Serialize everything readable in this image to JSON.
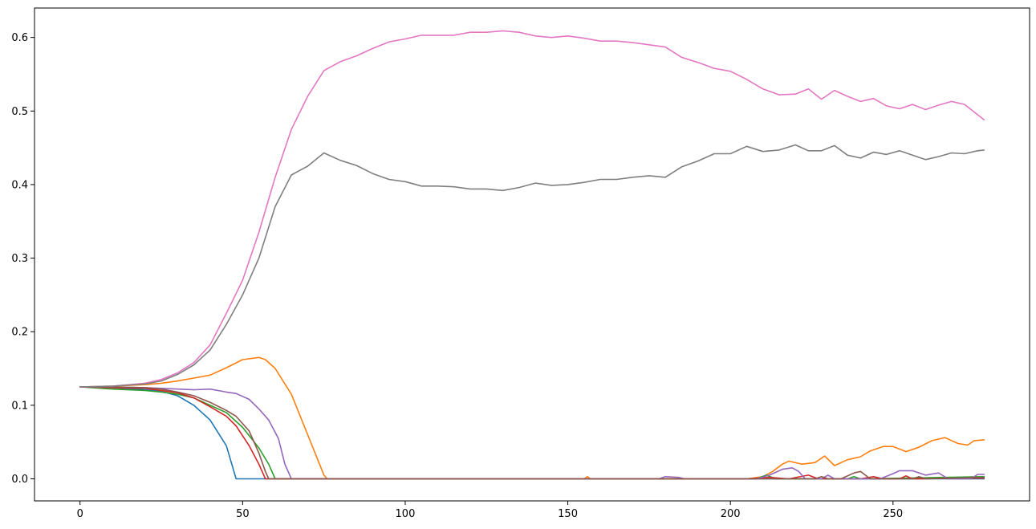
{
  "chart_data": {
    "type": "line",
    "title": "",
    "xlabel": "",
    "ylabel": "",
    "xlim": [
      -14,
      292
    ],
    "ylim": [
      -0.03,
      0.64
    ],
    "xticks": [
      0,
      50,
      100,
      150,
      200,
      250
    ],
    "xtick_labels": [
      "0",
      "50",
      "100",
      "150",
      "200",
      "250"
    ],
    "yticks": [
      0.0,
      0.1,
      0.2,
      0.3,
      0.4,
      0.5,
      0.6
    ],
    "ytick_labels": [
      "0.0",
      "0.1",
      "0.2",
      "0.3",
      "0.4",
      "0.5",
      "0.6"
    ],
    "grid": false,
    "series": [
      {
        "color": "#1f77b4",
        "points": [
          [
            0,
            0.125
          ],
          [
            10,
            0.124
          ],
          [
            20,
            0.121
          ],
          [
            25,
            0.119
          ],
          [
            30,
            0.113
          ],
          [
            35,
            0.1
          ],
          [
            40,
            0.08
          ],
          [
            45,
            0.045
          ],
          [
            48,
            0.0
          ],
          [
            278,
            0.0
          ]
        ]
      },
      {
        "color": "#ff7f0e",
        "points": [
          [
            0,
            0.125
          ],
          [
            10,
            0.126
          ],
          [
            20,
            0.128
          ],
          [
            25,
            0.13
          ],
          [
            30,
            0.133
          ],
          [
            35,
            0.137
          ],
          [
            40,
            0.141
          ],
          [
            45,
            0.151
          ],
          [
            50,
            0.162
          ],
          [
            55,
            0.165
          ],
          [
            57,
            0.162
          ],
          [
            60,
            0.15
          ],
          [
            65,
            0.115
          ],
          [
            70,
            0.06
          ],
          [
            75,
            0.005
          ],
          [
            76,
            0.0
          ],
          [
            155,
            0.0
          ],
          [
            156,
            0.003
          ],
          [
            157,
            0.0
          ],
          [
            205,
            0.0
          ],
          [
            210,
            0.003
          ],
          [
            213,
            0.01
          ],
          [
            216,
            0.02
          ],
          [
            218,
            0.024
          ],
          [
            222,
            0.02
          ],
          [
            226,
            0.022
          ],
          [
            229,
            0.031
          ],
          [
            232,
            0.018
          ],
          [
            236,
            0.026
          ],
          [
            240,
            0.03
          ],
          [
            243,
            0.038
          ],
          [
            247,
            0.044
          ],
          [
            250,
            0.044
          ],
          [
            254,
            0.037
          ],
          [
            258,
            0.043
          ],
          [
            262,
            0.052
          ],
          [
            266,
            0.056
          ],
          [
            270,
            0.048
          ],
          [
            273,
            0.046
          ],
          [
            275,
            0.052
          ],
          [
            278,
            0.053
          ]
        ]
      },
      {
        "color": "#2ca02c",
        "points": [
          [
            0,
            0.125
          ],
          [
            10,
            0.122
          ],
          [
            20,
            0.12
          ],
          [
            25,
            0.118
          ],
          [
            30,
            0.115
          ],
          [
            35,
            0.11
          ],
          [
            40,
            0.1
          ],
          [
            45,
            0.09
          ],
          [
            50,
            0.07
          ],
          [
            55,
            0.042
          ],
          [
            58,
            0.02
          ],
          [
            60,
            0.0
          ],
          [
            208,
            0.0
          ],
          [
            211,
            0.005
          ],
          [
            214,
            0.0
          ],
          [
            236,
            0.0
          ],
          [
            238,
            0.003
          ],
          [
            240,
            0.0
          ],
          [
            278,
            0.003
          ]
        ]
      },
      {
        "color": "#d62728",
        "points": [
          [
            0,
            0.125
          ],
          [
            10,
            0.124
          ],
          [
            20,
            0.123
          ],
          [
            25,
            0.12
          ],
          [
            30,
            0.117
          ],
          [
            35,
            0.11
          ],
          [
            40,
            0.098
          ],
          [
            45,
            0.085
          ],
          [
            48,
            0.072
          ],
          [
            52,
            0.045
          ],
          [
            55,
            0.02
          ],
          [
            57,
            0.0
          ],
          [
            205,
            0.0
          ],
          [
            212,
            0.002
          ],
          [
            218,
            0.0
          ],
          [
            224,
            0.005
          ],
          [
            227,
            0.0
          ],
          [
            240,
            0.0
          ],
          [
            244,
            0.003
          ],
          [
            247,
            0.0
          ],
          [
            252,
            0.0
          ],
          [
            254,
            0.004
          ],
          [
            256,
            0.0
          ],
          [
            278,
            0.001
          ]
        ]
      },
      {
        "color": "#9467bd",
        "points": [
          [
            0,
            0.125
          ],
          [
            10,
            0.125
          ],
          [
            20,
            0.124
          ],
          [
            25,
            0.123
          ],
          [
            30,
            0.122
          ],
          [
            35,
            0.121
          ],
          [
            40,
            0.122
          ],
          [
            45,
            0.118
          ],
          [
            48,
            0.116
          ],
          [
            52,
            0.108
          ],
          [
            55,
            0.095
          ],
          [
            58,
            0.08
          ],
          [
            61,
            0.055
          ],
          [
            63,
            0.02
          ],
          [
            65,
            0.0
          ],
          [
            178,
            0.0
          ],
          [
            180,
            0.003
          ],
          [
            184,
            0.002
          ],
          [
            186,
            0.0
          ],
          [
            208,
            0.0
          ],
          [
            212,
            0.005
          ],
          [
            216,
            0.013
          ],
          [
            219,
            0.015
          ],
          [
            221,
            0.01
          ],
          [
            223,
            0.0
          ],
          [
            228,
            0.0
          ],
          [
            230,
            0.005
          ],
          [
            232,
            0.0
          ],
          [
            246,
            0.0
          ],
          [
            250,
            0.007
          ],
          [
            252,
            0.011
          ],
          [
            256,
            0.011
          ],
          [
            260,
            0.005
          ],
          [
            264,
            0.008
          ],
          [
            267,
            0.0
          ],
          [
            274,
            0.0
          ],
          [
            276,
            0.006
          ],
          [
            278,
            0.006
          ]
        ]
      },
      {
        "color": "#8c564b",
        "points": [
          [
            0,
            0.125
          ],
          [
            10,
            0.125
          ],
          [
            20,
            0.124
          ],
          [
            25,
            0.122
          ],
          [
            30,
            0.118
          ],
          [
            35,
            0.113
          ],
          [
            40,
            0.104
          ],
          [
            45,
            0.093
          ],
          [
            48,
            0.085
          ],
          [
            52,
            0.065
          ],
          [
            55,
            0.035
          ],
          [
            57,
            0.01
          ],
          [
            58,
            0.0
          ],
          [
            226,
            0.0
          ],
          [
            228,
            0.003
          ],
          [
            230,
            0.0
          ],
          [
            234,
            0.0
          ],
          [
            238,
            0.008
          ],
          [
            240,
            0.01
          ],
          [
            243,
            0.0
          ],
          [
            256,
            0.0
          ],
          [
            258,
            0.003
          ],
          [
            260,
            0.0
          ],
          [
            278,
            0.002
          ]
        ]
      },
      {
        "color": "#e377c2",
        "points": [
          [
            0,
            0.125
          ],
          [
            10,
            0.126
          ],
          [
            20,
            0.13
          ],
          [
            25,
            0.135
          ],
          [
            30,
            0.144
          ],
          [
            35,
            0.158
          ],
          [
            40,
            0.182
          ],
          [
            45,
            0.225
          ],
          [
            50,
            0.27
          ],
          [
            55,
            0.335
          ],
          [
            60,
            0.41
          ],
          [
            65,
            0.475
          ],
          [
            70,
            0.52
          ],
          [
            75,
            0.555
          ],
          [
            80,
            0.567
          ],
          [
            85,
            0.575
          ],
          [
            90,
            0.585
          ],
          [
            95,
            0.594
          ],
          [
            100,
            0.598
          ],
          [
            105,
            0.603
          ],
          [
            110,
            0.603
          ],
          [
            115,
            0.603
          ],
          [
            120,
            0.607
          ],
          [
            125,
            0.607
          ],
          [
            130,
            0.609
          ],
          [
            135,
            0.607
          ],
          [
            140,
            0.602
          ],
          [
            145,
            0.6
          ],
          [
            150,
            0.602
          ],
          [
            155,
            0.599
          ],
          [
            160,
            0.595
          ],
          [
            165,
            0.595
          ],
          [
            170,
            0.593
          ],
          [
            175,
            0.59
          ],
          [
            180,
            0.587
          ],
          [
            185,
            0.573
          ],
          [
            190,
            0.566
          ],
          [
            195,
            0.558
          ],
          [
            200,
            0.554
          ],
          [
            205,
            0.543
          ],
          [
            210,
            0.53
          ],
          [
            215,
            0.522
          ],
          [
            220,
            0.523
          ],
          [
            224,
            0.53
          ],
          [
            228,
            0.516
          ],
          [
            232,
            0.528
          ],
          [
            236,
            0.52
          ],
          [
            240,
            0.513
          ],
          [
            244,
            0.517
          ],
          [
            248,
            0.507
          ],
          [
            252,
            0.503
          ],
          [
            256,
            0.509
          ],
          [
            260,
            0.502
          ],
          [
            264,
            0.508
          ],
          [
            268,
            0.513
          ],
          [
            272,
            0.509
          ],
          [
            276,
            0.495
          ],
          [
            278,
            0.488
          ]
        ]
      },
      {
        "color": "#7f7f7f",
        "points": [
          [
            0,
            0.125
          ],
          [
            10,
            0.126
          ],
          [
            20,
            0.129
          ],
          [
            25,
            0.133
          ],
          [
            30,
            0.142
          ],
          [
            35,
            0.155
          ],
          [
            40,
            0.175
          ],
          [
            45,
            0.21
          ],
          [
            50,
            0.25
          ],
          [
            55,
            0.3
          ],
          [
            60,
            0.37
          ],
          [
            65,
            0.413
          ],
          [
            70,
            0.425
          ],
          [
            75,
            0.443
          ],
          [
            80,
            0.433
          ],
          [
            85,
            0.426
          ],
          [
            90,
            0.415
          ],
          [
            95,
            0.407
          ],
          [
            100,
            0.404
          ],
          [
            105,
            0.398
          ],
          [
            110,
            0.398
          ],
          [
            115,
            0.397
          ],
          [
            120,
            0.394
          ],
          [
            125,
            0.394
          ],
          [
            130,
            0.392
          ],
          [
            135,
            0.396
          ],
          [
            140,
            0.402
          ],
          [
            145,
            0.399
          ],
          [
            150,
            0.4
          ],
          [
            155,
            0.403
          ],
          [
            160,
            0.407
          ],
          [
            165,
            0.407
          ],
          [
            170,
            0.41
          ],
          [
            175,
            0.412
          ],
          [
            180,
            0.41
          ],
          [
            185,
            0.424
          ],
          [
            190,
            0.432
          ],
          [
            195,
            0.442
          ],
          [
            200,
            0.442
          ],
          [
            205,
            0.452
          ],
          [
            210,
            0.445
          ],
          [
            215,
            0.447
          ],
          [
            220,
            0.454
          ],
          [
            224,
            0.446
          ],
          [
            228,
            0.446
          ],
          [
            232,
            0.453
          ],
          [
            236,
            0.44
          ],
          [
            240,
            0.436
          ],
          [
            244,
            0.444
          ],
          [
            248,
            0.441
          ],
          [
            252,
            0.446
          ],
          [
            256,
            0.44
          ],
          [
            260,
            0.434
          ],
          [
            264,
            0.438
          ],
          [
            268,
            0.443
          ],
          [
            272,
            0.442
          ],
          [
            276,
            0.446
          ],
          [
            278,
            0.447
          ]
        ]
      }
    ]
  }
}
